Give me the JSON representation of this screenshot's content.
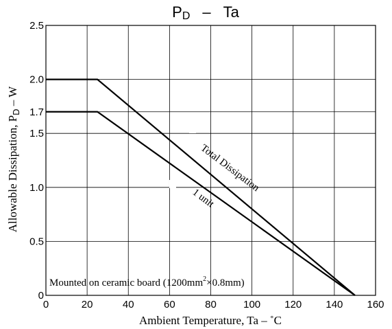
{
  "chart_data": {
    "type": "line",
    "title": "PD – Ta",
    "title_parts": {
      "main": "P",
      "subscript": "D",
      "dash": "–",
      "rest": "Ta"
    },
    "xlabel": "Ambient Temperature, Ta  –  ˚C",
    "ylabel": "Allowable Dissipation, PD  –  W",
    "ylabel_parts": {
      "before": "Allowable Dissipation, P",
      "subscript": "D",
      "after": "  –  W"
    },
    "xlim": [
      0,
      160
    ],
    "ylim": [
      0,
      2.5
    ],
    "x_ticks": [
      0,
      20,
      40,
      60,
      80,
      100,
      120,
      140,
      160
    ],
    "x_tick_labels": [
      "0",
      "20",
      "40",
      "60",
      "80",
      "100",
      "120",
      "140",
      "160"
    ],
    "y_ticks": [
      0,
      0.5,
      1.0,
      1.5,
      1.7,
      2.0,
      2.5
    ],
    "y_tick_labels": [
      "0",
      "0.5",
      "1.0",
      "1.5",
      "1.7",
      "2.0",
      "2.5"
    ],
    "grid": true,
    "series": [
      {
        "name": "Total Dissipation",
        "x": [
          0,
          25,
          150
        ],
        "y": [
          2.0,
          2.0,
          0
        ]
      },
      {
        "name": "1 unit",
        "x": [
          0,
          25,
          150
        ],
        "y": [
          1.7,
          1.7,
          0
        ]
      }
    ],
    "annotations": {
      "total": "Total Dissipation",
      "unit": "1 unit",
      "note": {
        "before": "Mounted on ceramic board (1200mm",
        "superscript": "2",
        "after": "×0.8mm)"
      }
    }
  }
}
